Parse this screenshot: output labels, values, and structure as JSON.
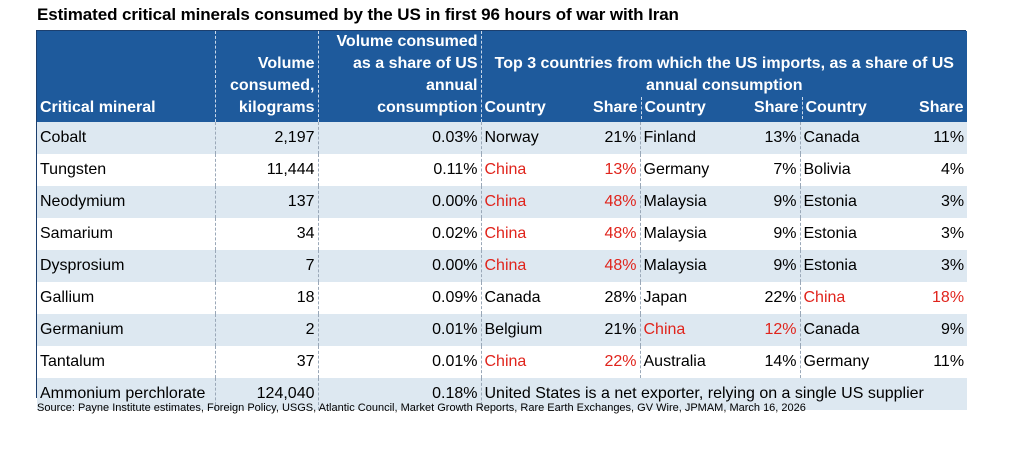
{
  "title": "Estimated critical minerals consumed by the US in first 96 hours of war with Iran",
  "headers": {
    "mineral": "Critical mineral",
    "volume_line1": "Volume",
    "volume_line2": "consumed,",
    "volume_line3": "kilograms",
    "share_line1": "Volume consumed",
    "share_line2": "as a share of US",
    "share_line3": "annual consumption",
    "top3_line1": "Top 3 countries from which the US imports, as a share of US",
    "top3_line2": "annual consumption",
    "country": "Country",
    "share": "Share"
  },
  "rows": [
    {
      "mineral": "Cobalt",
      "volume": "2,197",
      "pct": "0.03%",
      "c1": "Norway",
      "s1": "21%",
      "c2": "Finland",
      "s2": "13%",
      "c3": "Canada",
      "s3": "11%"
    },
    {
      "mineral": "Tungsten",
      "volume": "11,444",
      "pct": "0.11%",
      "c1": "China",
      "s1": "13%",
      "c2": "Germany",
      "s2": "7%",
      "c3": "Bolivia",
      "s3": "4%"
    },
    {
      "mineral": "Neodymium",
      "volume": "137",
      "pct": "0.00%",
      "c1": "China",
      "s1": "48%",
      "c2": "Malaysia",
      "s2": "9%",
      "c3": "Estonia",
      "s3": "3%"
    },
    {
      "mineral": "Samarium",
      "volume": "34",
      "pct": "0.02%",
      "c1": "China",
      "s1": "48%",
      "c2": "Malaysia",
      "s2": "9%",
      "c3": "Estonia",
      "s3": "3%"
    },
    {
      "mineral": "Dysprosium",
      "volume": "7",
      "pct": "0.00%",
      "c1": "China",
      "s1": "48%",
      "c2": "Malaysia",
      "s2": "9%",
      "c3": "Estonia",
      "s3": "3%"
    },
    {
      "mineral": "Gallium",
      "volume": "18",
      "pct": "0.09%",
      "c1": "Canada",
      "s1": "28%",
      "c2": "Japan",
      "s2": "22%",
      "c3": "China",
      "s3": "18%"
    },
    {
      "mineral": "Germanium",
      "volume": "2",
      "pct": "0.01%",
      "c1": "Belgium",
      "s1": "21%",
      "c2": "China",
      "s2": "12%",
      "c3": "Canada",
      "s3": "9%"
    },
    {
      "mineral": "Tantalum",
      "volume": "37",
      "pct": "0.01%",
      "c1": "China",
      "s1": "22%",
      "c2": "Australia",
      "s2": "14%",
      "c3": "Germany",
      "s3": "11%"
    }
  ],
  "last_row": {
    "mineral": "Ammonium perchlorate",
    "volume": "124,040",
    "pct": "0.18%",
    "note": "United States is a net exporter, relying on a single US supplier"
  },
  "highlight_country": "China",
  "highlight_color": "#e0241c",
  "header_color": "#1e5a9c",
  "stripe_color": "#dde8f1",
  "source": "Source: Payne Institute estimates, Foreign Policy, USGS, Atlantic Council, Market Growth Reports, Rare Earth Exchanges, GV Wire, JPMAM, March 16, 2026"
}
